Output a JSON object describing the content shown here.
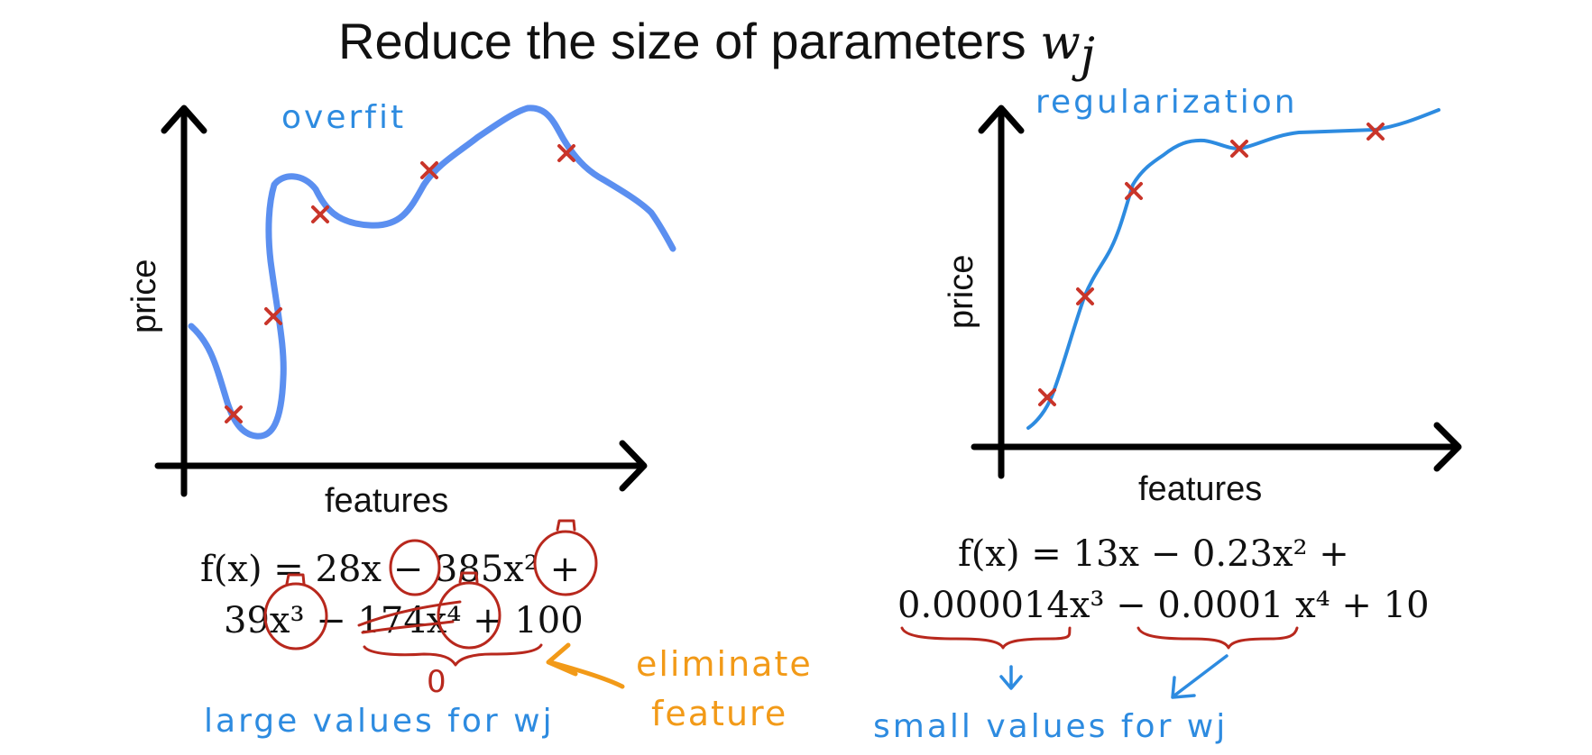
{
  "title": {
    "text": "Reduce the size of parameters ",
    "var": "w",
    "sub": "j"
  },
  "left_graph": {
    "annotation": "overfit",
    "xlabel": "features",
    "ylabel": "price",
    "equation_line1": "f(x) = 28x − 385x² +",
    "equation_line2": "39x³ − 174x⁴ + 100",
    "zero_note": "0",
    "eliminate_note_line1": "eliminate",
    "eliminate_note_line2": "feature",
    "bottom_note": "large values for wj"
  },
  "right_graph": {
    "annotation": "regularization",
    "xlabel": "features",
    "ylabel": "price",
    "equation_line1": "f(x) = 13x − 0.23x² +",
    "equation_line2": "0.000014x³ − 0.0001 x⁴ + 10",
    "bottom_note": "small values for wj"
  },
  "colors": {
    "overfit_curve": "#5b8ff0",
    "regularized_curve": "#2d8be0",
    "data_marks": "#c9352a",
    "red_ink": "#b8281d",
    "orange_ink": "#f29a18",
    "blue_ink": "#2d8be0"
  }
}
